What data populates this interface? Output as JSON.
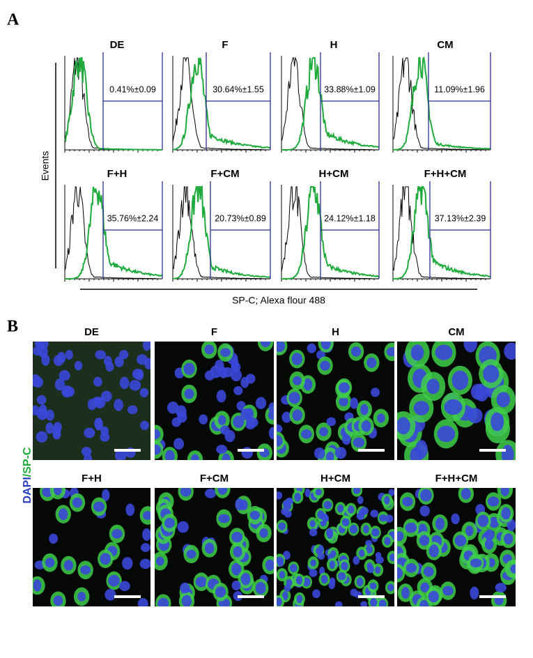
{
  "panel_a": {
    "label": "A",
    "y_axis_label": "Events",
    "x_axis_label": "SP-C; Alexa flour 488",
    "plots": [
      {
        "title": "DE",
        "gate_label": "0.41%±0.09"
      },
      {
        "title": "F",
        "gate_label": "30.64%±1.55"
      },
      {
        "title": "H",
        "gate_label": "33.88%±1.09"
      },
      {
        "title": "CM",
        "gate_label": "11.09%±1.96"
      },
      {
        "title": "F+H",
        "gate_label": "35.76%±2.24"
      },
      {
        "title": "F+CM",
        "gate_label": "20.73%±0.89"
      },
      {
        "title": "H+CM",
        "gate_label": "24.12%±1.18"
      },
      {
        "title": "F+H+CM",
        "gate_label": "37.13%±2.39"
      }
    ]
  },
  "panel_b": {
    "label": "B",
    "stain_dapi": "DAPI",
    "stain_spc": "/SP-C",
    "images": [
      {
        "title": "DE"
      },
      {
        "title": "F"
      },
      {
        "title": "H"
      },
      {
        "title": "CM"
      },
      {
        "title": "F+H"
      },
      {
        "title": "F+CM"
      },
      {
        "title": "H+CM"
      },
      {
        "title": "F+H+CM"
      }
    ]
  }
}
